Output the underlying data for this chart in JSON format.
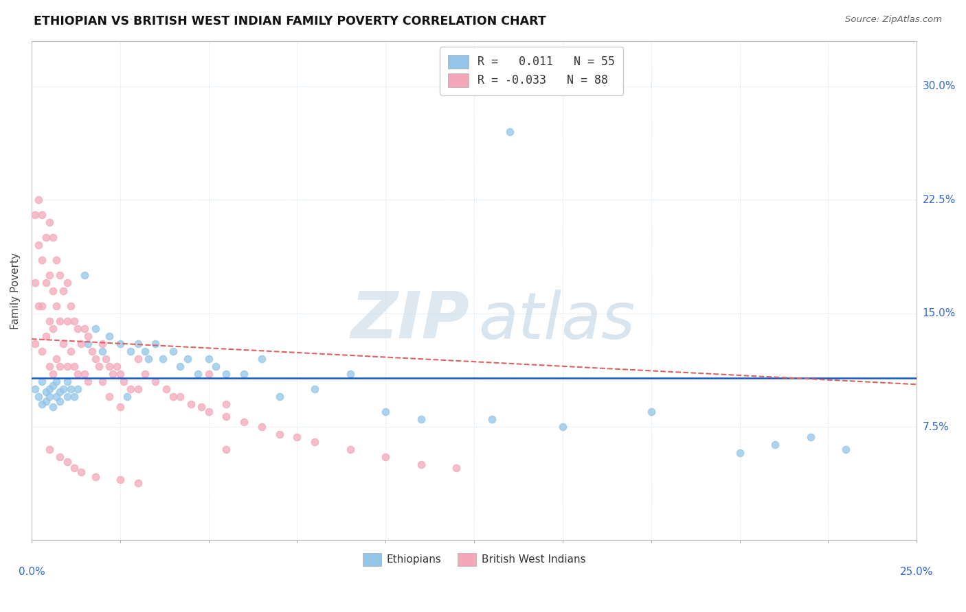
{
  "title": "ETHIOPIAN VS BRITISH WEST INDIAN FAMILY POVERTY CORRELATION CHART",
  "source": "Source: ZipAtlas.com",
  "ylabel": "Family Poverty",
  "ytick_vals": [
    0.075,
    0.15,
    0.225,
    0.3
  ],
  "ytick_labels": [
    "7.5%",
    "15.0%",
    "22.5%",
    "30.0%"
  ],
  "xlim": [
    0.0,
    0.25
  ],
  "ylim": [
    0.0,
    0.33
  ],
  "blue_color": "#92c5e8",
  "pink_color": "#f4a7b9",
  "regression_blue": "#1155cc",
  "regression_pink": "#e06060",
  "zip_color": "#d8e8f0",
  "atlas_color": "#b8cce4",
  "ethiopians_x": [
    0.001,
    0.002,
    0.003,
    0.003,
    0.004,
    0.004,
    0.005,
    0.005,
    0.006,
    0.006,
    0.007,
    0.007,
    0.008,
    0.008,
    0.009,
    0.01,
    0.01,
    0.011,
    0.012,
    0.013,
    0.015,
    0.016,
    0.018,
    0.02,
    0.022,
    0.025,
    0.027,
    0.028,
    0.03,
    0.032,
    0.033,
    0.035,
    0.037,
    0.04,
    0.042,
    0.044,
    0.047,
    0.05,
    0.052,
    0.055,
    0.06,
    0.065,
    0.07,
    0.08,
    0.09,
    0.1,
    0.11,
    0.13,
    0.15,
    0.175,
    0.2,
    0.21,
    0.22,
    0.23,
    0.135
  ],
  "ethiopians_y": [
    0.1,
    0.095,
    0.105,
    0.09,
    0.098,
    0.092,
    0.1,
    0.095,
    0.102,
    0.088,
    0.105,
    0.095,
    0.098,
    0.092,
    0.1,
    0.105,
    0.095,
    0.1,
    0.095,
    0.1,
    0.175,
    0.13,
    0.14,
    0.125,
    0.135,
    0.13,
    0.095,
    0.125,
    0.13,
    0.125,
    0.12,
    0.13,
    0.12,
    0.125,
    0.115,
    0.12,
    0.11,
    0.12,
    0.115,
    0.11,
    0.11,
    0.12,
    0.095,
    0.1,
    0.11,
    0.085,
    0.08,
    0.08,
    0.075,
    0.085,
    0.058,
    0.063,
    0.068,
    0.06,
    0.27
  ],
  "bwi_x": [
    0.001,
    0.001,
    0.001,
    0.002,
    0.002,
    0.002,
    0.003,
    0.003,
    0.003,
    0.003,
    0.004,
    0.004,
    0.004,
    0.005,
    0.005,
    0.005,
    0.005,
    0.006,
    0.006,
    0.006,
    0.006,
    0.007,
    0.007,
    0.007,
    0.008,
    0.008,
    0.008,
    0.009,
    0.009,
    0.01,
    0.01,
    0.01,
    0.011,
    0.011,
    0.012,
    0.012,
    0.013,
    0.013,
    0.014,
    0.015,
    0.015,
    0.016,
    0.016,
    0.017,
    0.018,
    0.019,
    0.02,
    0.02,
    0.021,
    0.022,
    0.023,
    0.024,
    0.025,
    0.026,
    0.028,
    0.03,
    0.03,
    0.032,
    0.035,
    0.038,
    0.04,
    0.042,
    0.045,
    0.048,
    0.05,
    0.055,
    0.06,
    0.065,
    0.07,
    0.075,
    0.08,
    0.09,
    0.1,
    0.11,
    0.12,
    0.05,
    0.055,
    0.022,
    0.025,
    0.055,
    0.005,
    0.008,
    0.01,
    0.012,
    0.014,
    0.018,
    0.025,
    0.03
  ],
  "bwi_y": [
    0.215,
    0.17,
    0.13,
    0.225,
    0.195,
    0.155,
    0.215,
    0.185,
    0.155,
    0.125,
    0.2,
    0.17,
    0.135,
    0.21,
    0.175,
    0.145,
    0.115,
    0.2,
    0.165,
    0.14,
    0.11,
    0.185,
    0.155,
    0.12,
    0.175,
    0.145,
    0.115,
    0.165,
    0.13,
    0.17,
    0.145,
    0.115,
    0.155,
    0.125,
    0.145,
    0.115,
    0.14,
    0.11,
    0.13,
    0.14,
    0.11,
    0.135,
    0.105,
    0.125,
    0.12,
    0.115,
    0.13,
    0.105,
    0.12,
    0.115,
    0.11,
    0.115,
    0.11,
    0.105,
    0.1,
    0.12,
    0.1,
    0.11,
    0.105,
    0.1,
    0.095,
    0.095,
    0.09,
    0.088,
    0.085,
    0.082,
    0.078,
    0.075,
    0.07,
    0.068,
    0.065,
    0.06,
    0.055,
    0.05,
    0.048,
    0.11,
    0.09,
    0.095,
    0.088,
    0.06,
    0.06,
    0.055,
    0.052,
    0.048,
    0.045,
    0.042,
    0.04,
    0.038
  ]
}
